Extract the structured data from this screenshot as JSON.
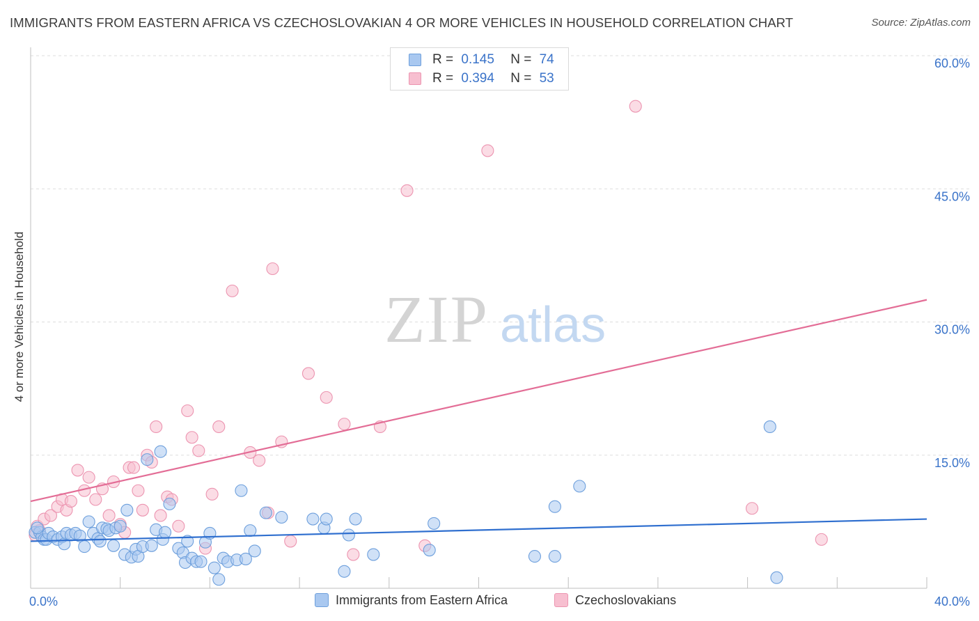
{
  "header": {
    "title": "IMMIGRANTS FROM EASTERN AFRICA VS CZECHOSLOVAKIAN 4 OR MORE VEHICLES IN HOUSEHOLD CORRELATION CHART",
    "source": "Source: ZipAtlas.com"
  },
  "watermark": {
    "zip": "ZIP",
    "atlas": "atlas"
  },
  "legend_stats": [
    {
      "r_label": "R =",
      "r_value": "0.145",
      "n_label": "N =",
      "n_value": "74"
    },
    {
      "r_label": "R =",
      "r_value": "0.394",
      "n_label": "N =",
      "n_value": "53"
    }
  ],
  "colors": {
    "series1_fill": "#a9c8f0",
    "series1_stroke": "#6d9fdc",
    "series1_line": "#2f6fcf",
    "series2_fill": "#f7bfd0",
    "series2_stroke": "#ec94b0",
    "series2_line": "#e36d96",
    "value_text": "#3a73c9",
    "grid": "#dddddd"
  },
  "chart_data": {
    "type": "scatter",
    "title": "IMMIGRANTS FROM EASTERN AFRICA VS CZECHOSLOVAKIAN 4 OR MORE VEHICLES IN HOUSEHOLD CORRELATION CHART",
    "xlabel": "",
    "ylabel": "4 or more Vehicles in Household",
    "xlim": [
      0,
      40
    ],
    "ylim": [
      0,
      60
    ],
    "x_tick_labels": [
      "0.0%",
      "40.0%"
    ],
    "y_tick_labels": [
      "15.0%",
      "30.0%",
      "45.0%",
      "60.0%"
    ],
    "y_ticks": [
      15,
      30,
      45,
      60
    ],
    "grid": true,
    "legend_position": "bottom",
    "series": [
      {
        "name": "Immigrants from Eastern Africa",
        "r": 0.145,
        "n": 74,
        "trend": [
          [
            0,
            5.3
          ],
          [
            40,
            7.8
          ]
        ],
        "points": [
          [
            0.2,
            6.3
          ],
          [
            0.4,
            6.3
          ],
          [
            0.5,
            5.8
          ],
          [
            0.6,
            5.5
          ],
          [
            0.7,
            5.5
          ],
          [
            0.8,
            6.2
          ],
          [
            1.0,
            5.8
          ],
          [
            1.2,
            5.5
          ],
          [
            1.4,
            5.8
          ],
          [
            1.5,
            5.0
          ],
          [
            1.6,
            6.2
          ],
          [
            1.8,
            6.0
          ],
          [
            2.0,
            6.2
          ],
          [
            2.2,
            5.9
          ],
          [
            2.4,
            4.7
          ],
          [
            2.6,
            7.5
          ],
          [
            2.8,
            6.2
          ],
          [
            3.0,
            5.6
          ],
          [
            3.1,
            5.3
          ],
          [
            3.2,
            6.8
          ],
          [
            3.4,
            6.7
          ],
          [
            3.5,
            6.5
          ],
          [
            3.7,
            4.8
          ],
          [
            3.8,
            6.8
          ],
          [
            4.0,
            7.0
          ],
          [
            4.2,
            3.8
          ],
          [
            4.3,
            8.8
          ],
          [
            4.5,
            3.5
          ],
          [
            4.7,
            4.4
          ],
          [
            4.8,
            3.6
          ],
          [
            5.0,
            4.7
          ],
          [
            5.2,
            14.5
          ],
          [
            5.4,
            4.8
          ],
          [
            5.6,
            6.6
          ],
          [
            5.8,
            15.4
          ],
          [
            5.9,
            5.5
          ],
          [
            6.0,
            6.3
          ],
          [
            6.2,
            9.5
          ],
          [
            6.6,
            4.5
          ],
          [
            6.8,
            4.0
          ],
          [
            6.9,
            2.9
          ],
          [
            7.0,
            5.3
          ],
          [
            7.2,
            3.4
          ],
          [
            7.4,
            3.0
          ],
          [
            7.6,
            3.0
          ],
          [
            7.8,
            5.2
          ],
          [
            8.0,
            6.2
          ],
          [
            8.2,
            2.3
          ],
          [
            8.4,
            1.0
          ],
          [
            8.6,
            3.4
          ],
          [
            8.8,
            3.0
          ],
          [
            9.2,
            3.2
          ],
          [
            9.4,
            11.0
          ],
          [
            9.6,
            3.3
          ],
          [
            9.8,
            6.5
          ],
          [
            10.0,
            4.2
          ],
          [
            10.5,
            8.5
          ],
          [
            11.2,
            8.0
          ],
          [
            12.6,
            7.8
          ],
          [
            13.1,
            6.8
          ],
          [
            13.2,
            7.8
          ],
          [
            14.0,
            1.9
          ],
          [
            14.2,
            6.0
          ],
          [
            14.5,
            7.8
          ],
          [
            15.3,
            3.8
          ],
          [
            17.8,
            4.3
          ],
          [
            18.0,
            7.3
          ],
          [
            22.5,
            3.6
          ],
          [
            23.4,
            9.2
          ],
          [
            23.4,
            3.6
          ],
          [
            24.5,
            11.5
          ],
          [
            33.0,
            18.2
          ],
          [
            33.3,
            1.2
          ],
          [
            0.3,
            6.8
          ]
        ]
      },
      {
        "name": "Czechoslovakians",
        "r": 0.394,
        "n": 53,
        "trend": [
          [
            0,
            9.8
          ],
          [
            40,
            32.5
          ]
        ],
        "points": [
          [
            0.3,
            7.0
          ],
          [
            0.4,
            6.5
          ],
          [
            0.6,
            7.8
          ],
          [
            0.9,
            8.2
          ],
          [
            1.2,
            9.2
          ],
          [
            1.4,
            10.0
          ],
          [
            1.6,
            8.8
          ],
          [
            1.8,
            9.8
          ],
          [
            2.1,
            13.3
          ],
          [
            2.4,
            11.0
          ],
          [
            2.6,
            12.5
          ],
          [
            2.9,
            10.0
          ],
          [
            3.2,
            11.2
          ],
          [
            3.5,
            8.2
          ],
          [
            3.7,
            12.0
          ],
          [
            4.0,
            7.2
          ],
          [
            4.2,
            6.3
          ],
          [
            4.4,
            13.6
          ],
          [
            4.6,
            13.6
          ],
          [
            4.8,
            11.0
          ],
          [
            5.0,
            8.8
          ],
          [
            5.2,
            15.0
          ],
          [
            5.4,
            14.2
          ],
          [
            5.6,
            18.2
          ],
          [
            5.8,
            8.2
          ],
          [
            6.1,
            10.3
          ],
          [
            6.3,
            10.0
          ],
          [
            6.6,
            7.0
          ],
          [
            7.0,
            20.0
          ],
          [
            7.2,
            17.0
          ],
          [
            7.5,
            15.5
          ],
          [
            7.8,
            4.5
          ],
          [
            8.1,
            10.6
          ],
          [
            8.4,
            18.2
          ],
          [
            9.0,
            33.5
          ],
          [
            9.8,
            15.3
          ],
          [
            10.2,
            14.4
          ],
          [
            10.6,
            8.5
          ],
          [
            10.8,
            36.0
          ],
          [
            11.2,
            16.5
          ],
          [
            11.6,
            5.3
          ],
          [
            12.4,
            24.2
          ],
          [
            13.2,
            21.5
          ],
          [
            14.0,
            18.5
          ],
          [
            14.4,
            3.8
          ],
          [
            15.6,
            18.2
          ],
          [
            16.8,
            44.8
          ],
          [
            17.6,
            4.8
          ],
          [
            20.4,
            49.3
          ],
          [
            27.0,
            54.3
          ],
          [
            32.2,
            9.0
          ],
          [
            35.3,
            5.5
          ],
          [
            0.2,
            6.0
          ]
        ]
      }
    ]
  }
}
